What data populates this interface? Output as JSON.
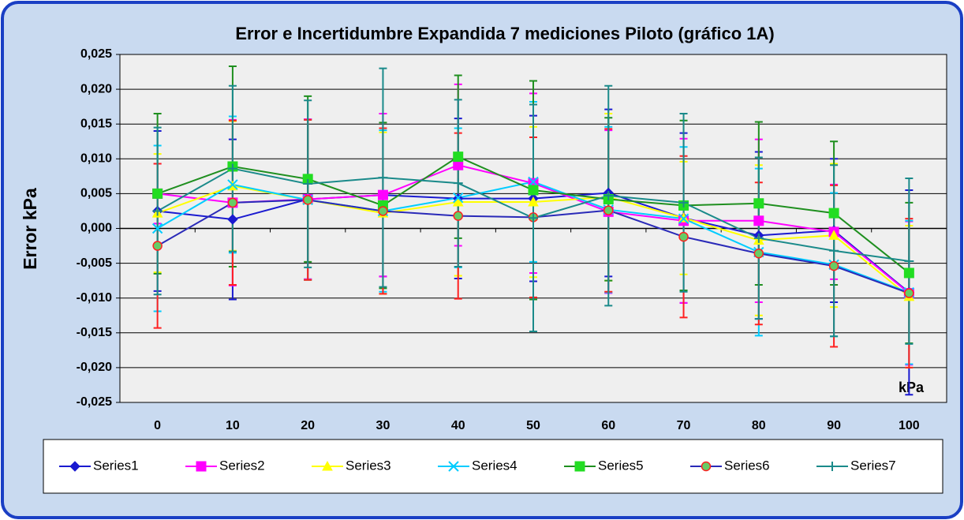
{
  "chart_data": {
    "type": "line",
    "title": "Error e Incertidumbre Expandida 7 mediciones Piloto (gráfico 1A)",
    "y_label": "Error kPa",
    "x_annotation": "kPa",
    "categories": [
      "0",
      "10",
      "20",
      "30",
      "40",
      "50",
      "60",
      "70",
      "80",
      "90",
      "100"
    ],
    "ylim": [
      -0.025,
      0.025
    ],
    "yticks": [
      {
        "value": -0.025,
        "label": "-0,025"
      },
      {
        "value": -0.02,
        "label": "-0,020"
      },
      {
        "value": -0.015,
        "label": "-0,015"
      },
      {
        "value": -0.01,
        "label": "-0,010"
      },
      {
        "value": -0.005,
        "label": "-0,005"
      },
      {
        "value": 0,
        "label": "0,000"
      },
      {
        "value": 0.005,
        "label": "0,005"
      },
      {
        "value": 0.01,
        "label": "0,010"
      },
      {
        "value": 0.015,
        "label": "0,015"
      },
      {
        "value": 0.02,
        "label": "0,020"
      },
      {
        "value": 0.025,
        "label": "0,025"
      }
    ],
    "grid": true,
    "legend": "bottom",
    "series": [
      {
        "name": "Series1",
        "color": "#1a1ad0",
        "marker": "diamond",
        "marker_fill": "#1a1ad0",
        "marker_edge": "#1a1ad0",
        "error_color": "#1a1ad0",
        "values": [
          0.0025,
          0.0013,
          0.0042,
          0.0048,
          0.0043,
          0.0043,
          0.0051,
          0.0015,
          -0.001,
          -0.0003,
          -0.0092
        ],
        "errors": [
          0.0115,
          0.0115,
          0.0115,
          0.0117,
          0.0115,
          0.0119,
          0.012,
          0.0122,
          0.012,
          0.0103,
          0.0147
        ]
      },
      {
        "name": "Series2",
        "color": "#ff00ff",
        "marker": "square",
        "marker_fill": "#ff00ff",
        "marker_edge": "#ff00ff",
        "error_color": "#ff00ff",
        "values": [
          0.005,
          0.0037,
          0.0042,
          0.0048,
          0.0091,
          0.0065,
          0.0024,
          0.0011,
          0.0011,
          -0.0005,
          -0.0093
        ],
        "errors": [
          0.0043,
          0.0119,
          0.0115,
          0.0117,
          0.0116,
          0.0129,
          0.0117,
          0.0118,
          0.0117,
          0.0068,
          0.0103
        ]
      },
      {
        "name": "Series3",
        "color": "#ffff00",
        "marker": "triangle",
        "marker_fill": "#ffff00",
        "marker_edge": "#ffff00",
        "error_color": "#ffff00",
        "values": [
          0.0022,
          0.0061,
          0.0041,
          0.0022,
          0.0038,
          0.0038,
          0.0045,
          0.0015,
          -0.0017,
          -0.001,
          -0.0098
        ],
        "errors": [
          0.0085,
          0.0093,
          0.0115,
          0.0116,
          0.0106,
          0.0108,
          0.012,
          0.0081,
          0.0108,
          0.0103,
          0.0102
        ]
      },
      {
        "name": "Series4",
        "color": "#00ccff",
        "marker": "x",
        "marker_fill": "#00ccff",
        "marker_edge": "#00ccff",
        "error_color": "#00ccff",
        "values": [
          0.0,
          0.0063,
          0.0041,
          0.0025,
          0.0044,
          0.0067,
          0.0027,
          0.0014,
          -0.0034,
          -0.0052,
          -0.0092
        ],
        "errors": [
          0.0119,
          0.0098,
          0.0115,
          0.0116,
          0.01,
          0.0115,
          0.0119,
          0.0103,
          0.012,
          0.0103,
          0.0103
        ]
      },
      {
        "name": "Series5",
        "color": "#1f8f1f",
        "marker": "square",
        "marker_fill": "#22dd22",
        "marker_edge": "#22dd22",
        "error_color": "#1f8f1f",
        "values": [
          0.005,
          0.0089,
          0.0071,
          0.0033,
          0.0103,
          0.0055,
          0.0042,
          0.0033,
          0.0036,
          0.0022,
          -0.0064
        ],
        "errors": [
          0.0115,
          0.0144,
          0.0119,
          0.0119,
          0.0117,
          0.0157,
          0.0117,
          0.0122,
          0.0117,
          0.0103,
          0.0101
        ]
      },
      {
        "name": "Series6",
        "color": "#2a2ab8",
        "marker": "circle",
        "marker_fill": "#66cc66",
        "marker_edge": "#ff2020",
        "error_color": "#ff2020",
        "values": [
          -0.0025,
          0.0037,
          0.0041,
          0.0025,
          0.0018,
          0.0016,
          0.0026,
          -0.0012,
          -0.0036,
          -0.0054,
          -0.0093
        ],
        "errors": [
          0.0118,
          0.0118,
          0.0115,
          0.0119,
          0.0119,
          0.0115,
          0.0117,
          0.0116,
          0.0102,
          0.0116,
          0.0107
        ]
      },
      {
        "name": "Series7",
        "color": "#1a8a8a",
        "marker": "plus",
        "marker_fill": "#1a8a8a",
        "marker_edge": "#1a8a8a",
        "error_color": "#1a8a8a",
        "values": [
          0.0025,
          0.0086,
          0.0064,
          0.0073,
          0.0065,
          0.0015,
          0.0047,
          0.0037,
          -0.0014,
          -0.0032,
          -0.0047
        ],
        "errors": [
          0.012,
          0.0119,
          0.012,
          0.0157,
          0.012,
          0.0163,
          0.0158,
          0.0128,
          0.0116,
          0.0123,
          0.0119
        ]
      }
    ]
  }
}
